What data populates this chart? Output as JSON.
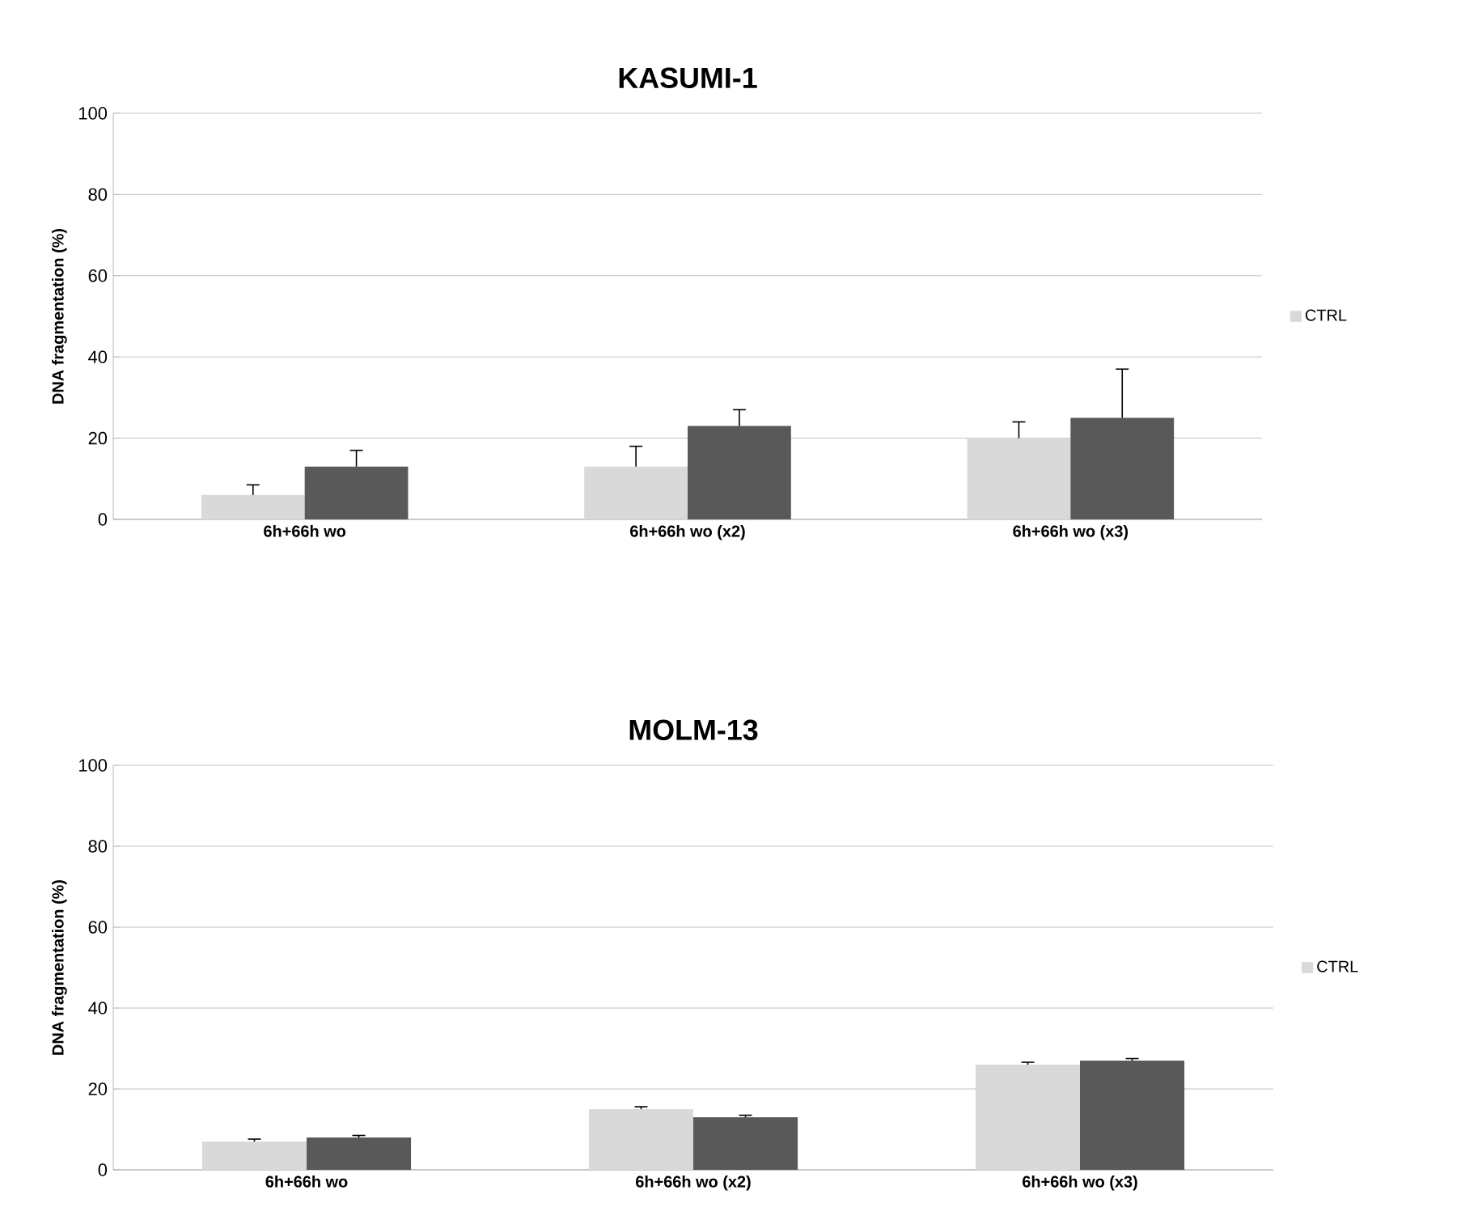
{
  "chart_data": [
    {
      "type": "bar",
      "title": "KASUMI-1",
      "ylabel": "DNA fragmentation (%)",
      "categories": [
        "6h+66h wo",
        "6h+66h wo (x2)",
        "6h+66h wo (x3)"
      ],
      "series": [
        {
          "name": "CTRL",
          "color": "#d9d9d9",
          "values": [
            6,
            13,
            20
          ],
          "errors": [
            [
              6,
              8.5
            ],
            [
              13,
              18
            ],
            [
              20,
              24
            ]
          ]
        },
        {
          "color": "#595959",
          "values": [
            13,
            23,
            25
          ],
          "errors": [
            [
              13,
              17
            ],
            [
              23,
              27
            ],
            [
              25,
              37
            ]
          ]
        }
      ],
      "ylim": [
        0,
        100
      ],
      "yticks": [
        0,
        20,
        40,
        60,
        80,
        100
      ],
      "grid": "y",
      "legend": "right"
    },
    {
      "type": "bar",
      "title": "MOLM-13",
      "ylabel": "DNA fragmentation (%)",
      "categories": [
        "6h+66h wo",
        "6h+66h wo (x2)",
        "6h+66h wo (x3)"
      ],
      "series": [
        {
          "name": "CTRL",
          "color": "#d9d9d9",
          "values": [
            7,
            15,
            26
          ],
          "errors": [
            [
              7,
              7.6
            ],
            [
              15,
              15.6
            ],
            [
              26,
              26.6
            ]
          ]
        },
        {
          "color": "#595959",
          "values": [
            8,
            13,
            27
          ],
          "errors": [
            [
              8,
              8.5
            ],
            [
              13,
              13.5
            ],
            [
              27,
              27.5
            ]
          ]
        }
      ],
      "ylim": [
        0,
        100
      ],
      "yticks": [
        0,
        20,
        40,
        60,
        80,
        100
      ],
      "grid": "y",
      "legend": "right"
    }
  ]
}
